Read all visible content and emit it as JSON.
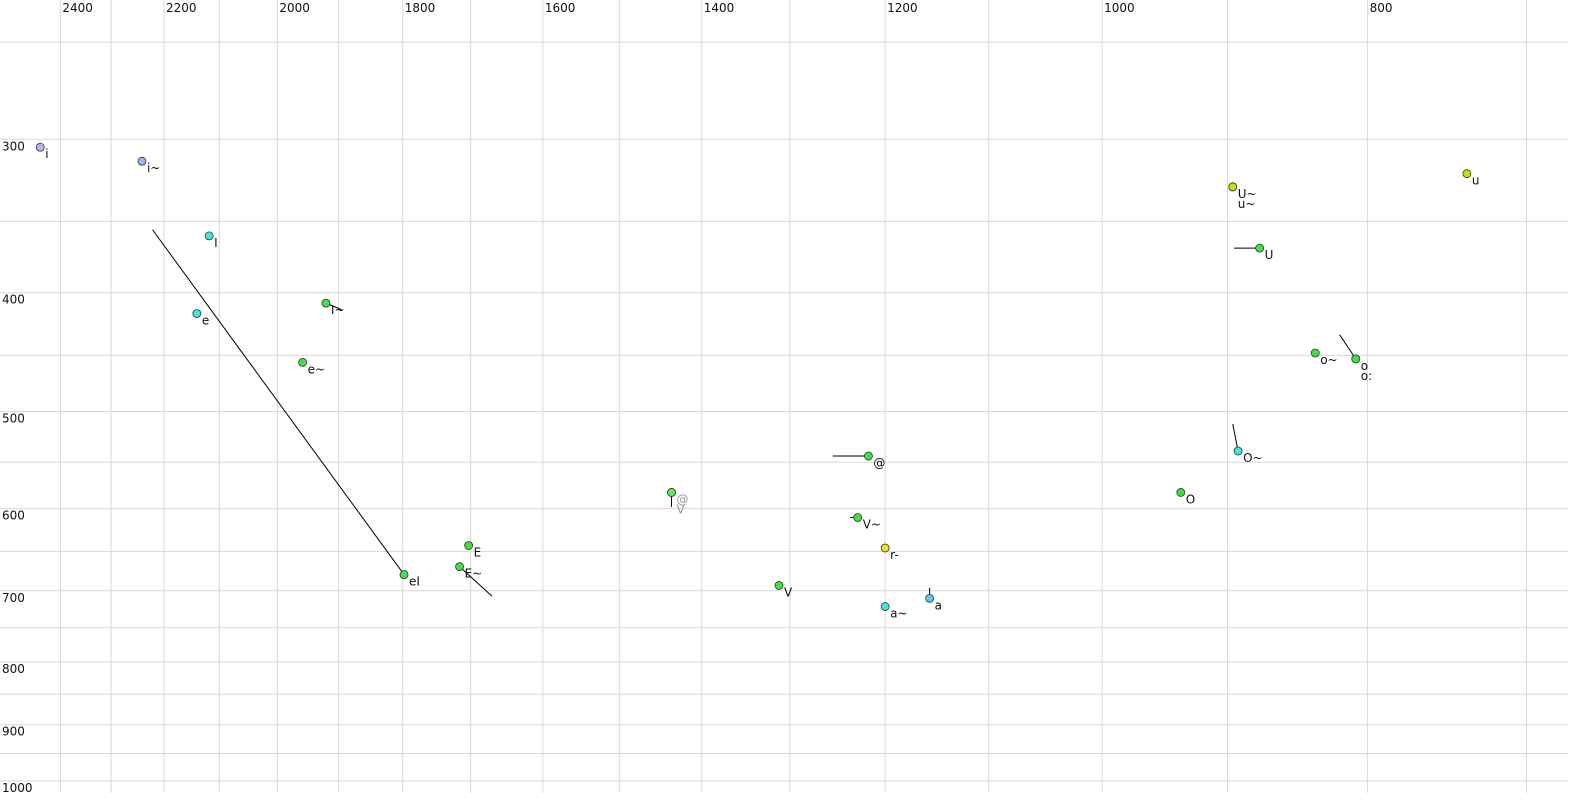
{
  "chart_data": {
    "type": "scatter",
    "xscale": "log",
    "yscale": "log",
    "xlim": [
      2525,
      676
    ],
    "ylim": [
      231,
      1023
    ],
    "xticks": [
      2400,
      2200,
      2000,
      1800,
      1600,
      1400,
      1200,
      1000,
      800
    ],
    "yticks": [
      300,
      400,
      500,
      600,
      700,
      800,
      900,
      1000
    ],
    "xminor_grid": [
      2300,
      2100,
      1900,
      1700,
      1500,
      1300,
      1100,
      900,
      700
    ],
    "yminor_grid": [
      250,
      350,
      450,
      550,
      650,
      750,
      850,
      950
    ],
    "grid": true,
    "points": [
      {
        "label": "i",
        "x": 2441,
        "y": 304.5,
        "color": "#b4b4f4"
      },
      {
        "label": "i~",
        "x": 2241,
        "y": 312.6,
        "color": "#9cb4f4"
      },
      {
        "label": "I",
        "x": 2118,
        "y": 359.6,
        "color": "#40e4e0"
      },
      {
        "label": "e",
        "x": 2140,
        "y": 416,
        "color": "#40e4e0"
      },
      {
        "label": "I~",
        "x": 1920,
        "y": 408,
        "color": "#40e040",
        "x_end": 1895,
        "y_end": 413
      },
      {
        "label": "e~",
        "x": 1958,
        "y": 456,
        "color": "#40e040"
      },
      {
        "label": "eI",
        "x": 1798,
        "y": 679,
        "color": "#40e040",
        "x_end": 2221,
        "y_end": 355.6
      },
      {
        "label": "E",
        "x": 1703,
        "y": 643,
        "color": "#40e040"
      },
      {
        "label": "E~",
        "x": 1716,
        "y": 669,
        "color": "#40e040",
        "x_end": 1670,
        "y_end": 707
      },
      {
        "label": "@",
        "x": 1436,
        "y": 582,
        "color": "#60e860",
        "label_color": "#999999",
        "x_end": 1436,
        "y_end": 598
      },
      {
        "label": "V",
        "x": 1436,
        "y": 582,
        "color": "#60e860",
        "label_color": "#999999"
      },
      {
        "label": "V",
        "x": 1312,
        "y": 693,
        "color": "#40e040"
      },
      {
        "label": "@",
        "x": 1217,
        "y": 543.6,
        "color": "#40e040",
        "x_end": 1254,
        "y_end": 543.6
      },
      {
        "label": "V~",
        "x": 1228,
        "y": 610,
        "color": "#40e040",
        "x_end": 1236,
        "y_end": 610
      },
      {
        "label": "r-",
        "x": 1200,
        "y": 646,
        "color": "#e8e020",
        "x_end": 1200,
        "y_end": 641
      },
      {
        "label": "a~",
        "x": 1200,
        "y": 721,
        "color": "#40e4e0"
      },
      {
        "label": "a",
        "x": 1156,
        "y": 710,
        "color": "#60c4f4",
        "x_end": 1156,
        "y_end": 696
      },
      {
        "label": "O",
        "x": 936,
        "y": 582,
        "color": "#40e040"
      },
      {
        "label": "O~",
        "x": 892,
        "y": 538.5,
        "color": "#40e4e0",
        "x_end": 896,
        "y_end": 512
      },
      {
        "label": "U~",
        "x": 896,
        "y": 328,
        "color": "#c4e400"
      },
      {
        "label": "u~",
        "x": 896,
        "y": 328,
        "color": "#c4e400"
      },
      {
        "label": "U",
        "x": 876,
        "y": 368,
        "color": "#40e040",
        "x_end": 895,
        "y_end": 368
      },
      {
        "label": "o~",
        "x": 836,
        "y": 448,
        "color": "#40e040"
      },
      {
        "label": "o",
        "x": 808,
        "y": 453,
        "color": "#40e040",
        "x_end": 819,
        "y_end": 433
      },
      {
        "label": "o:",
        "x": 808,
        "y": 453,
        "color": "#40e040"
      },
      {
        "label": "u",
        "x": 736,
        "y": 320,
        "color": "#c4e400"
      }
    ]
  }
}
